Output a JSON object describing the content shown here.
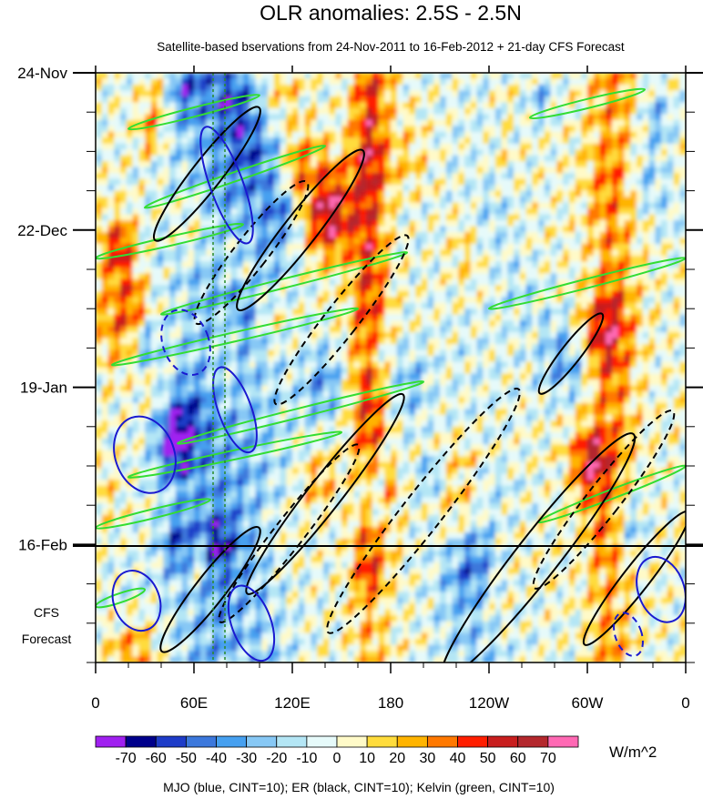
{
  "chart_data": {
    "type": "heatmap",
    "title": "OLR anomalies: 2.5S - 2.5N",
    "subtitle": "Satellite-based bservations from 24-Nov-2011 to 16-Feb-2012 + 21-day CFS Forecast",
    "xlabel": "",
    "ylabel": "",
    "x_tick_labels": [
      "0",
      "60E",
      "120E",
      "180",
      "120W",
      "60W",
      "0"
    ],
    "x_tick_degrees_east": [
      0,
      60,
      120,
      180,
      240,
      300,
      360
    ],
    "y_tick_labels": [
      "24-Nov",
      "22-Dec",
      "19-Jan",
      "16-Feb"
    ],
    "y_tick_days": [
      0,
      28,
      56,
      84
    ],
    "y_range_days": [
      0,
      105
    ],
    "observation_end_day": 84,
    "forecast_label_line1": "CFS",
    "forecast_label_line2": "Forecast",
    "colorbar": {
      "levels": [
        "-70",
        "-60",
        "-50",
        "-40",
        "-30",
        "-20",
        "-10",
        "0",
        "10",
        "20",
        "30",
        "40",
        "50",
        "60",
        "70"
      ],
      "colors": [
        "#a020f0",
        "#00008b",
        "#1e3cc8",
        "#3c78dc",
        "#46a0f0",
        "#87c8f5",
        "#b4e6f5",
        "#e6fafa",
        "#fffac8",
        "#ffdc3c",
        "#ffb400",
        "#ff7800",
        "#ff1e00",
        "#c81e1e",
        "#b4282d",
        "#ff69b4"
      ],
      "units": "W/m^2"
    },
    "footer": "MJO (blue, CINT=10); ER (black, CINT=10); Kelvin (green, CINT=10)",
    "contour_colors": {
      "mjo": "#1a1ad0",
      "er": "#000000",
      "kelvin": "#33dd33"
    },
    "kelvin_bands": [
      {
        "lon": [
          20,
          100
        ],
        "day": [
          10,
          4
        ]
      },
      {
        "lon": [
          30,
          140
        ],
        "day": [
          24,
          13
        ]
      },
      {
        "lon": [
          0,
          90
        ],
        "day": [
          33,
          27
        ]
      },
      {
        "lon": [
          40,
          190
        ],
        "day": [
          43,
          32
        ]
      },
      {
        "lon": [
          10,
          160
        ],
        "day": [
          52,
          42
        ]
      },
      {
        "lon": [
          50,
          200
        ],
        "day": [
          66,
          55
        ]
      },
      {
        "lon": [
          20,
          150
        ],
        "day": [
          72,
          64
        ]
      },
      {
        "lon": [
          0,
          70
        ],
        "day": [
          81,
          76
        ]
      },
      {
        "lon": [
          265,
          335
        ],
        "day": [
          8,
          3
        ]
      },
      {
        "lon": [
          240,
          360
        ],
        "day": [
          42,
          33
        ]
      },
      {
        "lon": [
          270,
          360
        ],
        "day": [
          80,
          70
        ]
      },
      {
        "lon": [
          0,
          30
        ],
        "day": [
          95,
          92
        ]
      }
    ],
    "er_contours": [
      {
        "lon": 68,
        "day": 18,
        "rx": 9,
        "ry": 30,
        "dashed": false
      },
      {
        "lon": 95,
        "day": 32,
        "rx": 10,
        "ry": 32,
        "dashed": true
      },
      {
        "lon": 125,
        "day": 28,
        "rx": 10,
        "ry": 36,
        "dashed": false
      },
      {
        "lon": 150,
        "day": 44,
        "rx": 10,
        "ry": 38,
        "dashed": true
      },
      {
        "lon": 140,
        "day": 75,
        "rx": 10,
        "ry": 45,
        "dashed": false
      },
      {
        "lon": 118,
        "day": 82,
        "rx": 9,
        "ry": 40,
        "dashed": true
      },
      {
        "lon": 70,
        "day": 92,
        "rx": 9,
        "ry": 28,
        "dashed": false
      },
      {
        "lon": 200,
        "day": 78,
        "rx": 12,
        "ry": 55,
        "dashed": true
      },
      {
        "lon": 270,
        "day": 86,
        "rx": 13,
        "ry": 55,
        "dashed": false
      },
      {
        "lon": 310,
        "day": 76,
        "rx": 10,
        "ry": 40,
        "dashed": true
      },
      {
        "lon": 330,
        "day": 90,
        "rx": 8,
        "ry": 30,
        "dashed": false
      },
      {
        "lon": 290,
        "day": 50,
        "rx": 6,
        "ry": 18,
        "dashed": false
      }
    ],
    "mjo_contours": [
      {
        "lon": 30,
        "day": 68,
        "rx": 18,
        "ry": 14,
        "dashed": false
      },
      {
        "lon": 55,
        "day": 48,
        "rx": 14,
        "ry": 12,
        "dashed": true
      },
      {
        "lon": 85,
        "day": 60,
        "rx": 10,
        "ry": 16,
        "dashed": false
      },
      {
        "lon": 80,
        "day": 20,
        "rx": 10,
        "ry": 22,
        "dashed": false
      },
      {
        "lon": 25,
        "day": 94,
        "rx": 14,
        "ry": 11,
        "dashed": false
      },
      {
        "lon": 95,
        "day": 98,
        "rx": 12,
        "ry": 14,
        "dashed": false
      },
      {
        "lon": 345,
        "day": 92,
        "rx": 14,
        "ry": 12,
        "dashed": false
      },
      {
        "lon": 325,
        "day": 100,
        "rx": 8,
        "ry": 8,
        "dashed": true
      }
    ]
  }
}
